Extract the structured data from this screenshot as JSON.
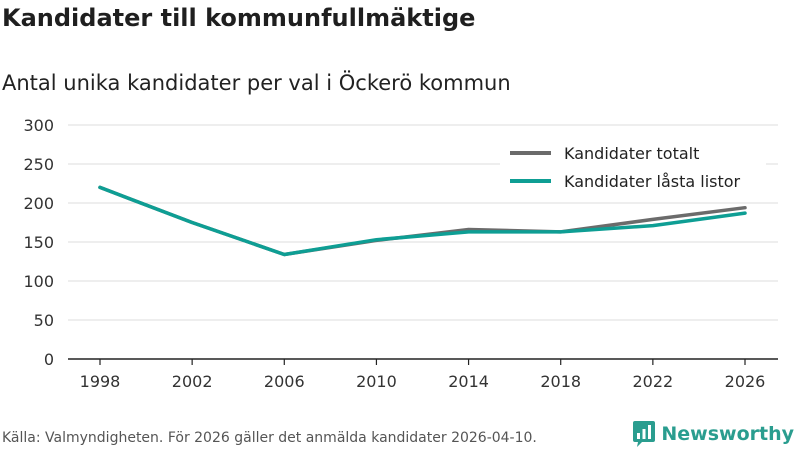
{
  "header": {
    "title": "Kandidater till kommunfullmäktige",
    "subtitle": "Antal unika kandidater per val i Öckerö kommun"
  },
  "chart_data": {
    "type": "line",
    "title": "Kandidater till kommunfullmäktige",
    "subtitle": "Antal unika kandidater per val i Öckerö kommun",
    "xlabel": "",
    "ylabel": "",
    "categories": [
      "1998",
      "2002",
      "2006",
      "2010",
      "2014",
      "2018",
      "2022",
      "2026"
    ],
    "ylim": [
      0,
      300
    ],
    "yticks": [
      0,
      50,
      100,
      150,
      200,
      250,
      300
    ],
    "grid": true,
    "legend_position": "top-right",
    "series": [
      {
        "name": "Kandidater totalt",
        "color": "#6b6b6b",
        "values": [
          220,
          175,
          134,
          152,
          166,
          163,
          179,
          194
        ]
      },
      {
        "name": "Kandidater låsta listor",
        "color": "#0e9e94",
        "values": [
          220,
          175,
          134,
          153,
          163,
          163,
          171,
          187
        ]
      }
    ]
  },
  "footer": {
    "source": "Källa: Valmyndigheten. För 2026 gäller det anmälda kandidater 2026-04-10.",
    "brand": "Newsworthy",
    "brand_color": "#2a9d8f",
    "brand_icon": "bar-chart-icon"
  }
}
